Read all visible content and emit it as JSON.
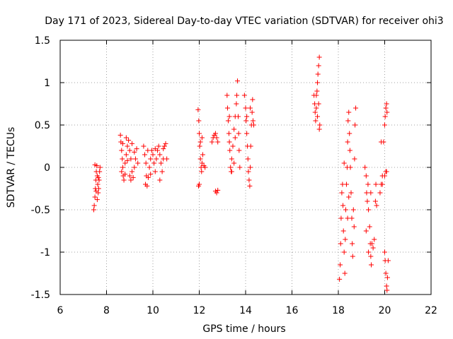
{
  "chart_data": {
    "type": "scatter",
    "title": "Day 171 of 2023, Sidereal Day-to-day VTEC variation (SDTVAR) for receiver ohi3",
    "xlabel": "GPS time / hours",
    "ylabel": "SDTVAR / TECUs",
    "xlim": [
      6,
      22
    ],
    "ylim": [
      -1.5,
      1.5
    ],
    "xticks": [
      6,
      8,
      10,
      12,
      14,
      16,
      18,
      20,
      22
    ],
    "xtick_labels": [
      "6",
      "8",
      "10",
      "12",
      "14",
      "16",
      "18",
      "20",
      "22"
    ],
    "yticks": [
      -1.5,
      -1,
      -0.5,
      0,
      0.5,
      1,
      1.5
    ],
    "ytick_labels": [
      "-1.5",
      "-1",
      "-0.5",
      "0",
      "0.5",
      "1",
      "1.5"
    ],
    "grid": true,
    "marker": "+",
    "marker_color": "#ff0000",
    "series": [
      {
        "name": "SDTVAR",
        "points": [
          [
            7.45,
            -0.5
          ],
          [
            7.47,
            -0.45
          ],
          [
            7.5,
            -0.35
          ],
          [
            7.52,
            -0.25
          ],
          [
            7.54,
            -0.15
          ],
          [
            7.56,
            -0.05
          ],
          [
            7.58,
            0.02
          ],
          [
            7.6,
            -0.1
          ],
          [
            7.62,
            -0.2
          ],
          [
            7.64,
            -0.3
          ],
          [
            7.66,
            -0.25
          ],
          [
            7.68,
            -0.15
          ],
          [
            7.7,
            -0.05
          ],
          [
            7.72,
            0.0
          ],
          [
            7.55,
            -0.28
          ],
          [
            7.6,
            -0.38
          ],
          [
            7.65,
            -0.12
          ],
          [
            7.5,
            0.03
          ],
          [
            8.6,
            0.38
          ],
          [
            8.62,
            0.3
          ],
          [
            8.65,
            0.2
          ],
          [
            8.68,
            0.1
          ],
          [
            8.7,
            0.0
          ],
          [
            8.72,
            -0.1
          ],
          [
            8.75,
            -0.15
          ],
          [
            8.8,
            0.05
          ],
          [
            8.85,
            0.15
          ],
          [
            8.9,
            0.25
          ],
          [
            8.95,
            0.32
          ],
          [
            9.0,
            0.2
          ],
          [
            9.05,
            0.1
          ],
          [
            9.1,
            -0.05
          ],
          [
            9.15,
            -0.12
          ],
          [
            9.2,
            0.0
          ],
          [
            9.25,
            0.1
          ],
          [
            9.3,
            0.22
          ],
          [
            9.35,
            0.05
          ],
          [
            8.7,
            0.28
          ],
          [
            8.8,
            -0.08
          ],
          [
            8.9,
            0.08
          ],
          [
            9.0,
            -0.1
          ],
          [
            9.1,
            0.28
          ],
          [
            9.2,
            0.18
          ],
          [
            8.65,
            -0.05
          ],
          [
            8.85,
            0.35
          ],
          [
            9.05,
            -0.15
          ],
          [
            9.6,
            0.25
          ],
          [
            9.65,
            0.15
          ],
          [
            9.7,
            0.05
          ],
          [
            9.72,
            -0.1
          ],
          [
            9.75,
            -0.22
          ],
          [
            9.8,
            -0.12
          ],
          [
            9.85,
            0.0
          ],
          [
            9.9,
            0.1
          ],
          [
            9.95,
            0.2
          ],
          [
            10.0,
            0.15
          ],
          [
            10.05,
            0.05
          ],
          [
            10.1,
            -0.05
          ],
          [
            10.15,
            0.1
          ],
          [
            10.2,
            0.2
          ],
          [
            10.25,
            0.25
          ],
          [
            10.3,
            0.15
          ],
          [
            10.35,
            0.05
          ],
          [
            10.4,
            -0.05
          ],
          [
            10.45,
            0.1
          ],
          [
            10.5,
            0.25
          ],
          [
            10.55,
            0.28
          ],
          [
            10.6,
            0.1
          ],
          [
            9.68,
            -0.2
          ],
          [
            9.9,
            -0.08
          ],
          [
            10.1,
            0.22
          ],
          [
            10.3,
            -0.15
          ],
          [
            10.45,
            0.22
          ],
          [
            9.78,
            0.2
          ],
          [
            11.95,
            0.68
          ],
          [
            11.98,
            0.55
          ],
          [
            12.0,
            0.4
          ],
          [
            12.02,
            0.25
          ],
          [
            12.05,
            0.1
          ],
          [
            12.08,
            0.0
          ],
          [
            12.1,
            -0.05
          ],
          [
            12.12,
            0.05
          ],
          [
            12.15,
            0.15
          ],
          [
            12.2,
            0.02
          ],
          [
            12.25,
            0.0
          ],
          [
            12.0,
            -0.2
          ],
          [
            11.97,
            -0.22
          ],
          [
            12.05,
            0.3
          ],
          [
            12.12,
            0.35
          ],
          [
            12.55,
            0.3
          ],
          [
            12.6,
            0.35
          ],
          [
            12.65,
            0.38
          ],
          [
            12.7,
            0.4
          ],
          [
            12.75,
            0.35
          ],
          [
            12.8,
            0.3
          ],
          [
            12.7,
            -0.28
          ],
          [
            12.75,
            -0.3
          ],
          [
            12.8,
            -0.27
          ],
          [
            13.2,
            0.85
          ],
          [
            13.22,
            0.7
          ],
          [
            13.25,
            0.55
          ],
          [
            13.28,
            0.4
          ],
          [
            13.3,
            0.3
          ],
          [
            13.32,
            0.2
          ],
          [
            13.35,
            0.0
          ],
          [
            13.38,
            -0.05
          ],
          [
            13.4,
            0.1
          ],
          [
            13.45,
            0.25
          ],
          [
            13.5,
            0.45
          ],
          [
            13.55,
            0.6
          ],
          [
            13.6,
            0.75
          ],
          [
            13.62,
            0.85
          ],
          [
            13.65,
            1.02
          ],
          [
            13.68,
            0.6
          ],
          [
            13.7,
            0.4
          ],
          [
            13.72,
            0.2
          ],
          [
            13.75,
            0.0
          ],
          [
            13.5,
            0.05
          ],
          [
            13.4,
            -0.05
          ],
          [
            13.55,
            0.35
          ],
          [
            13.3,
            0.6
          ],
          [
            13.95,
            0.85
          ],
          [
            14.0,
            0.7
          ],
          [
            14.02,
            0.55
          ],
          [
            14.05,
            0.4
          ],
          [
            14.08,
            0.25
          ],
          [
            14.1,
            0.1
          ],
          [
            14.12,
            -0.05
          ],
          [
            14.15,
            -0.15
          ],
          [
            14.18,
            -0.22
          ],
          [
            14.2,
            0.0
          ],
          [
            14.22,
            0.25
          ],
          [
            14.25,
            0.5
          ],
          [
            14.28,
            0.65
          ],
          [
            14.3,
            0.8
          ],
          [
            14.32,
            0.55
          ],
          [
            14.35,
            0.5
          ],
          [
            14.05,
            0.6
          ],
          [
            14.2,
            0.7
          ],
          [
            16.95,
            0.85
          ],
          [
            16.98,
            0.75
          ],
          [
            17.0,
            0.65
          ],
          [
            17.02,
            0.55
          ],
          [
            17.05,
            0.7
          ],
          [
            17.08,
            0.9
          ],
          [
            17.1,
            1.0
          ],
          [
            17.12,
            1.1
          ],
          [
            17.15,
            1.2
          ],
          [
            17.18,
            1.3
          ],
          [
            17.2,
            0.5
          ],
          [
            17.18,
            0.45
          ],
          [
            17.1,
            0.6
          ],
          [
            17.05,
            0.85
          ],
          [
            17.15,
            0.75
          ],
          [
            18.05,
            -1.32
          ],
          [
            18.08,
            -1.15
          ],
          [
            18.1,
            -0.9
          ],
          [
            18.12,
            -0.6
          ],
          [
            18.15,
            -0.3
          ],
          [
            18.18,
            -0.2
          ],
          [
            18.2,
            -0.45
          ],
          [
            18.22,
            -0.75
          ],
          [
            18.25,
            -1.0
          ],
          [
            18.28,
            -1.25
          ],
          [
            18.3,
            -0.85
          ],
          [
            18.32,
            -0.5
          ],
          [
            18.35,
            -0.2
          ],
          [
            18.38,
            0.0
          ],
          [
            18.4,
            0.3
          ],
          [
            18.42,
            0.55
          ],
          [
            18.45,
            0.65
          ],
          [
            18.48,
            0.4
          ],
          [
            18.5,
            0.2
          ],
          [
            18.52,
            0.0
          ],
          [
            18.55,
            -0.3
          ],
          [
            18.58,
            -0.6
          ],
          [
            18.6,
            -0.9
          ],
          [
            18.62,
            -1.05
          ],
          [
            18.65,
            -0.5
          ],
          [
            18.68,
            -0.7
          ],
          [
            18.7,
            0.1
          ],
          [
            18.72,
            0.5
          ],
          [
            18.75,
            0.7
          ],
          [
            18.4,
            -0.6
          ],
          [
            18.45,
            -0.35
          ],
          [
            18.25,
            0.05
          ],
          [
            19.15,
            0.0
          ],
          [
            19.2,
            -0.1
          ],
          [
            19.22,
            -0.3
          ],
          [
            19.25,
            -0.4
          ],
          [
            19.28,
            -0.2
          ],
          [
            19.3,
            -0.5
          ],
          [
            19.35,
            -0.7
          ],
          [
            19.38,
            -0.9
          ],
          [
            19.4,
            -1.05
          ],
          [
            19.42,
            -1.15
          ],
          [
            19.45,
            -0.9
          ],
          [
            19.5,
            -0.95
          ],
          [
            19.55,
            -0.85
          ],
          [
            19.6,
            -0.4
          ],
          [
            19.62,
            -0.2
          ],
          [
            19.65,
            -0.45
          ],
          [
            19.2,
            -0.75
          ],
          [
            19.3,
            -1.0
          ],
          [
            19.4,
            -0.3
          ],
          [
            19.8,
            -0.3
          ],
          [
            19.85,
            -0.2
          ],
          [
            19.9,
            -0.1
          ],
          [
            19.95,
            0.3
          ],
          [
            20.0,
            0.5
          ],
          [
            20.02,
            0.6
          ],
          [
            20.05,
            0.7
          ],
          [
            20.08,
            0.75
          ],
          [
            20.1,
            0.65
          ],
          [
            20.05,
            -0.05
          ],
          [
            20.0,
            -0.1
          ],
          [
            20.08,
            -0.05
          ],
          [
            20.0,
            -1.0
          ],
          [
            20.02,
            -1.1
          ],
          [
            20.05,
            -1.25
          ],
          [
            20.08,
            -1.4
          ],
          [
            20.1,
            -1.45
          ],
          [
            20.12,
            -1.3
          ],
          [
            20.15,
            -1.1
          ],
          [
            19.9,
            -0.2
          ],
          [
            19.85,
            0.3
          ]
        ]
      }
    ]
  }
}
